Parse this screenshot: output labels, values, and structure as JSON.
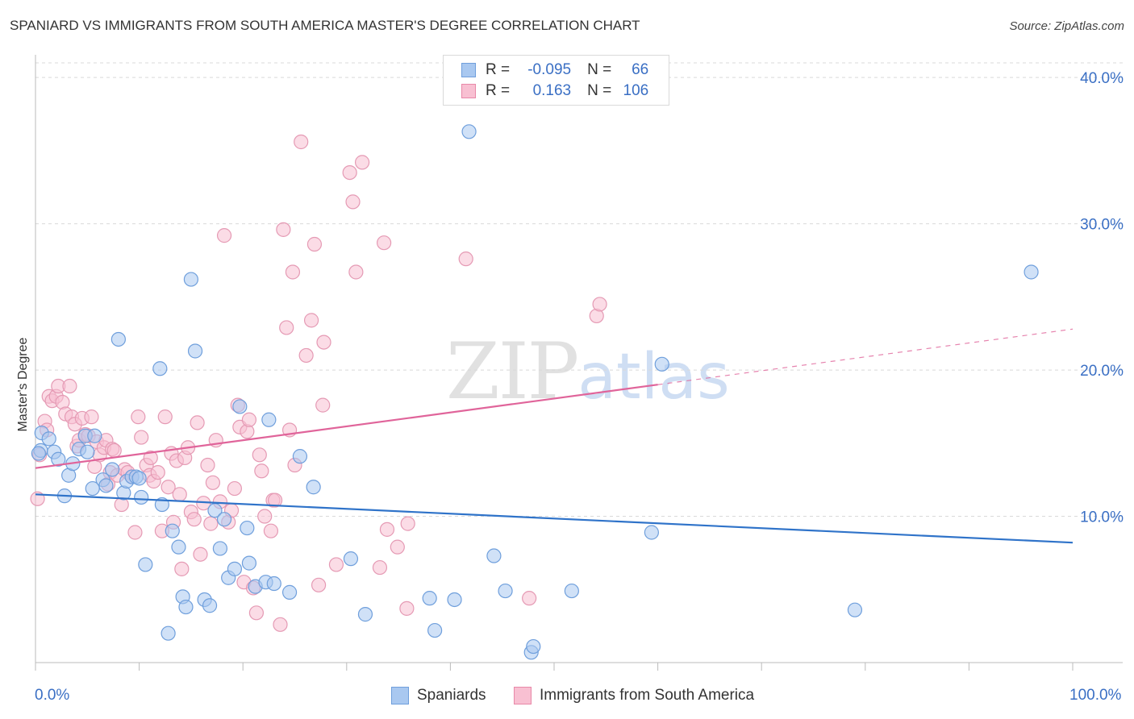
{
  "title": "SPANIARD VS IMMIGRANTS FROM SOUTH AMERICA MASTER'S DEGREE CORRELATION CHART",
  "source": "Source: ZipAtlas.com",
  "watermark": {
    "zip": "ZIP",
    "atlas": "atlas"
  },
  "legend": {
    "rows": [
      {
        "r_label": "R =",
        "r_value": "-0.095",
        "n_label": "N =",
        "n_value": "66",
        "color": "#a9c8f0",
        "border": "#6f9fdc"
      },
      {
        "r_label": "R =",
        "r_value": "0.163",
        "n_label": "N =",
        "n_value": "106",
        "color": "#f8c0d2",
        "border": "#e888a8"
      }
    ]
  },
  "bottom_legend": {
    "spaniards": "Spaniards",
    "immigrants": "Immigrants from South America"
  },
  "colors": {
    "blue_fill": "#a9c8f0",
    "blue_stroke": "#6f9fdc",
    "blue_line": "#2f73c9",
    "pink_fill": "#f7bfd1",
    "pink_stroke": "#e59ab4",
    "pink_line": "#e0649a",
    "grid": "#d9d9d9",
    "axis_text": "#3a6fc4"
  },
  "chart_data": {
    "type": "scatter",
    "title": "SPANIARD VS IMMIGRANTS FROM SOUTH AMERICA MASTER'S DEGREE CORRELATION CHART",
    "xlabel": "",
    "ylabel": "Master's Degree",
    "xlim": [
      0,
      100
    ],
    "ylim": [
      0,
      41
    ],
    "x_tick_labels": [
      "0.0%",
      "100.0%"
    ],
    "y_ticks": [
      10,
      20,
      30,
      40
    ],
    "y_tick_labels": [
      "10.0%",
      "20.0%",
      "30.0%",
      "40.0%"
    ],
    "grid": true,
    "legend_position": "top-center",
    "series": [
      {
        "name": "Spaniards",
        "r": -0.095,
        "n": 66,
        "trend": {
          "x": [
            0,
            100
          ],
          "y": [
            11.5,
            8.2
          ]
        },
        "points": [
          [
            0.5,
            14.5
          ],
          [
            0.6,
            15.7
          ],
          [
            1.3,
            15.3
          ],
          [
            1.8,
            14.4
          ],
          [
            2.2,
            13.9
          ],
          [
            2.8,
            11.4
          ],
          [
            3.2,
            12.8
          ],
          [
            3.6,
            13.6
          ],
          [
            4.2,
            14.6
          ],
          [
            4.8,
            15.5
          ],
          [
            5.0,
            14.4
          ],
          [
            5.5,
            11.9
          ],
          [
            5.7,
            15.5
          ],
          [
            6.5,
            12.5
          ],
          [
            6.8,
            12.1
          ],
          [
            7.4,
            13.2
          ],
          [
            8.0,
            22.1
          ],
          [
            8.5,
            11.6
          ],
          [
            8.8,
            12.4
          ],
          [
            9.3,
            12.7
          ],
          [
            9.7,
            12.7
          ],
          [
            10.0,
            12.6
          ],
          [
            10.2,
            11.3
          ],
          [
            10.6,
            6.7
          ],
          [
            12.0,
            20.1
          ],
          [
            12.2,
            10.8
          ],
          [
            12.8,
            2.0
          ],
          [
            13.2,
            9.0
          ],
          [
            13.8,
            7.9
          ],
          [
            14.2,
            4.5
          ],
          [
            14.5,
            3.8
          ],
          [
            15.0,
            26.2
          ],
          [
            15.4,
            21.3
          ],
          [
            16.3,
            4.3
          ],
          [
            16.8,
            3.9
          ],
          [
            17.3,
            10.4
          ],
          [
            17.8,
            7.8
          ],
          [
            18.2,
            9.8
          ],
          [
            18.6,
            5.8
          ],
          [
            19.2,
            6.4
          ],
          [
            19.7,
            17.5
          ],
          [
            20.4,
            9.2
          ],
          [
            20.6,
            6.8
          ],
          [
            21.2,
            5.2
          ],
          [
            22.2,
            5.5
          ],
          [
            22.5,
            16.6
          ],
          [
            23.0,
            5.4
          ],
          [
            24.5,
            4.8
          ],
          [
            25.5,
            14.1
          ],
          [
            26.8,
            12.0
          ],
          [
            30.4,
            7.1
          ],
          [
            31.8,
            3.3
          ],
          [
            38.0,
            4.4
          ],
          [
            38.5,
            2.2
          ],
          [
            40.4,
            4.3
          ],
          [
            41.8,
            36.3
          ],
          [
            44.2,
            7.3
          ],
          [
            45.3,
            4.9
          ],
          [
            47.8,
            0.7
          ],
          [
            48.0,
            1.1
          ],
          [
            51.7,
            4.9
          ],
          [
            59.4,
            8.9
          ],
          [
            60.4,
            20.4
          ],
          [
            79.0,
            3.6
          ],
          [
            96.0,
            26.7
          ],
          [
            0.3,
            14.3
          ]
        ]
      },
      {
        "name": "Immigrants from South America",
        "r": 0.163,
        "n": 106,
        "trend": {
          "x": [
            0,
            60
          ],
          "y": [
            13.3,
            19.0
          ]
        },
        "trend_dashed": {
          "x": [
            60,
            100
          ],
          "y": [
            19.0,
            22.8
          ]
        },
        "points": [
          [
            0.2,
            11.2
          ],
          [
            0.4,
            14.2
          ],
          [
            0.9,
            16.5
          ],
          [
            1.1,
            15.9
          ],
          [
            1.3,
            18.2
          ],
          [
            1.6,
            17.9
          ],
          [
            2.0,
            18.2
          ],
          [
            2.2,
            18.9
          ],
          [
            2.6,
            17.8
          ],
          [
            2.9,
            17.0
          ],
          [
            3.3,
            18.9
          ],
          [
            3.5,
            16.8
          ],
          [
            3.8,
            16.3
          ],
          [
            4.0,
            14.8
          ],
          [
            4.2,
            15.2
          ],
          [
            4.5,
            16.7
          ],
          [
            4.8,
            15.6
          ],
          [
            5.1,
            15.5
          ],
          [
            5.4,
            16.8
          ],
          [
            5.7,
            13.4
          ],
          [
            5.9,
            15.1
          ],
          [
            6.2,
            14.2
          ],
          [
            6.6,
            14.7
          ],
          [
            6.8,
            15.2
          ],
          [
            7.0,
            12.2
          ],
          [
            7.2,
            13.0
          ],
          [
            7.4,
            14.6
          ],
          [
            7.6,
            14.5
          ],
          [
            7.9,
            12.8
          ],
          [
            8.3,
            10.8
          ],
          [
            8.6,
            13.2
          ],
          [
            8.9,
            13.0
          ],
          [
            9.3,
            12.7
          ],
          [
            9.6,
            8.9
          ],
          [
            9.9,
            16.8
          ],
          [
            10.2,
            15.4
          ],
          [
            10.7,
            13.5
          ],
          [
            11.0,
            12.8
          ],
          [
            11.1,
            14.0
          ],
          [
            11.4,
            12.4
          ],
          [
            11.8,
            13.0
          ],
          [
            12.2,
            9.0
          ],
          [
            12.5,
            16.8
          ],
          [
            12.8,
            12.0
          ],
          [
            13.1,
            14.3
          ],
          [
            13.3,
            9.6
          ],
          [
            13.6,
            13.8
          ],
          [
            13.9,
            11.5
          ],
          [
            14.1,
            6.4
          ],
          [
            14.4,
            14.0
          ],
          [
            14.7,
            14.7
          ],
          [
            15.0,
            10.3
          ],
          [
            15.3,
            9.8
          ],
          [
            15.6,
            16.4
          ],
          [
            15.9,
            7.4
          ],
          [
            16.2,
            10.9
          ],
          [
            16.6,
            13.5
          ],
          [
            16.9,
            9.5
          ],
          [
            17.1,
            12.3
          ],
          [
            17.4,
            15.2
          ],
          [
            17.8,
            11.0
          ],
          [
            18.2,
            29.2
          ],
          [
            18.6,
            9.6
          ],
          [
            18.9,
            10.4
          ],
          [
            19.2,
            11.9
          ],
          [
            19.5,
            17.6
          ],
          [
            19.7,
            16.1
          ],
          [
            20.1,
            5.5
          ],
          [
            20.4,
            15.8
          ],
          [
            20.6,
            16.6
          ],
          [
            21.0,
            5.1
          ],
          [
            21.3,
            3.4
          ],
          [
            21.6,
            14.2
          ],
          [
            21.8,
            13.1
          ],
          [
            22.1,
            10.0
          ],
          [
            22.7,
            9.0
          ],
          [
            22.9,
            11.1
          ],
          [
            23.1,
            11.1
          ],
          [
            23.6,
            2.6
          ],
          [
            23.9,
            29.6
          ],
          [
            24.2,
            22.9
          ],
          [
            24.5,
            15.9
          ],
          [
            24.8,
            26.7
          ],
          [
            25.0,
            13.5
          ],
          [
            25.6,
            35.6
          ],
          [
            26.1,
            21.0
          ],
          [
            26.6,
            23.4
          ],
          [
            26.9,
            28.6
          ],
          [
            27.3,
            5.3
          ],
          [
            27.7,
            17.6
          ],
          [
            27.8,
            21.9
          ],
          [
            29.0,
            6.7
          ],
          [
            30.3,
            33.5
          ],
          [
            30.6,
            31.5
          ],
          [
            30.9,
            26.7
          ],
          [
            31.5,
            34.2
          ],
          [
            33.2,
            6.5
          ],
          [
            33.6,
            28.7
          ],
          [
            33.9,
            9.1
          ],
          [
            34.9,
            7.9
          ],
          [
            35.8,
            3.7
          ],
          [
            35.9,
            9.5
          ],
          [
            41.5,
            27.6
          ],
          [
            47.6,
            4.4
          ],
          [
            54.1,
            23.7
          ],
          [
            54.4,
            24.5
          ]
        ]
      }
    ]
  }
}
